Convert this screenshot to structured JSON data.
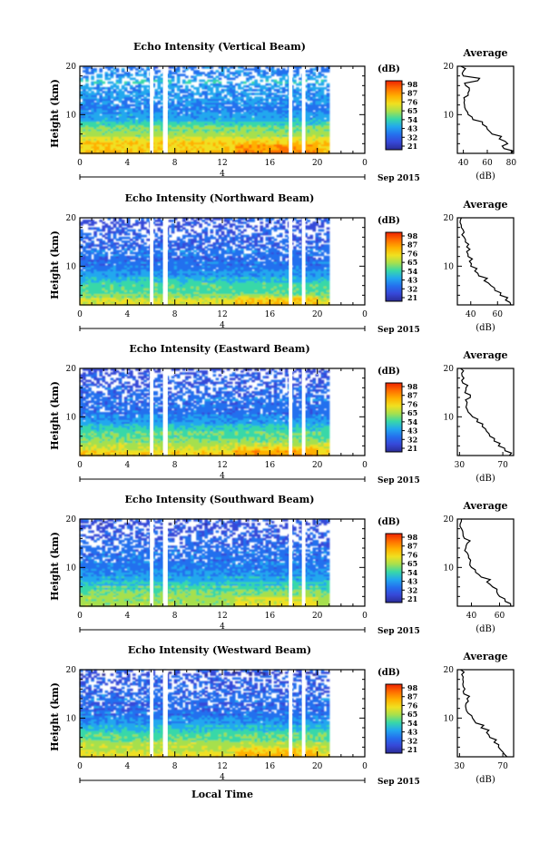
{
  "figure": {
    "local_time_label": "Local Time",
    "date_unit": "Sep 2015",
    "day_label": "4",
    "colorbar": {
      "unit": "(dB)",
      "tick_labels": [
        "98",
        "87",
        "76",
        "65",
        "54",
        "43",
        "32",
        "21"
      ],
      "colors": [
        "#ee2200",
        "#ff6e00",
        "#ffb000",
        "#f0e020",
        "#a6e04e",
        "#38d8a8",
        "#22a8ee",
        "#2470ee",
        "#3648d8",
        "#2a2c96"
      ]
    }
  },
  "chart_data": [
    {
      "type": "heatmap",
      "title": "Echo Intensity (Vertical Beam)",
      "ylabel": "Height (km)",
      "xlim": [
        0,
        24
      ],
      "ylim": [
        2,
        20
      ],
      "x_ticks": [
        "0",
        "4",
        "8",
        "12",
        "16",
        "20",
        "0"
      ],
      "y_ticks": [
        "20",
        "10"
      ],
      "data_end_hour": 21,
      "gaps_hours": [
        [
          5.9,
          6.2
        ],
        [
          7.0,
          7.4
        ],
        [
          17.6,
          17.9
        ],
        [
          18.7,
          19.0
        ]
      ],
      "color_scale": {
        "unit": "dB",
        "range": [
          21,
          98
        ],
        "ticks": [
          98,
          87,
          76,
          65,
          54,
          43,
          32,
          21
        ]
      },
      "profile": {
        "title": "Average",
        "xlabel": "(dB)",
        "x_ticks": [
          "40",
          "60",
          "80"
        ],
        "xlim": [
          35,
          82
        ],
        "heights_km": [
          2,
          3,
          4,
          5,
          6,
          7,
          8,
          9,
          10,
          11,
          12,
          13,
          14,
          15,
          16,
          17,
          18,
          19,
          20
        ],
        "values_db": [
          80,
          74,
          77,
          70,
          64,
          60,
          56,
          48,
          44,
          42,
          41,
          41,
          44,
          45,
          42,
          52,
          40,
          40,
          38
        ]
      }
    },
    {
      "type": "heatmap",
      "title": "Echo Intensity (Northward Beam)",
      "ylabel": "Height (km)",
      "xlim": [
        0,
        24
      ],
      "ylim": [
        2,
        20
      ],
      "x_ticks": [
        "0",
        "4",
        "8",
        "12",
        "16",
        "20",
        "0"
      ],
      "y_ticks": [
        "20",
        "10"
      ],
      "data_end_hour": 21,
      "gaps_hours": [
        [
          5.9,
          6.2
        ],
        [
          7.0,
          7.4
        ],
        [
          17.6,
          17.9
        ],
        [
          18.7,
          19.0
        ]
      ],
      "color_scale": {
        "unit": "dB",
        "range": [
          21,
          98
        ],
        "ticks": [
          98,
          87,
          76,
          65,
          54,
          43,
          32,
          21
        ]
      },
      "profile": {
        "title": "Average",
        "xlabel": "(dB)",
        "x_ticks": [
          "40",
          "60"
        ],
        "xlim": [
          30,
          72
        ],
        "heights_km": [
          2,
          3,
          4,
          5,
          6,
          7,
          8,
          9,
          10,
          11,
          12,
          13,
          14,
          15,
          16,
          17,
          18,
          19,
          20
        ],
        "values_db": [
          70,
          66,
          62,
          58,
          55,
          50,
          46,
          43,
          40,
          39,
          38,
          37,
          37,
          36,
          35,
          35,
          33,
          32,
          33
        ]
      }
    },
    {
      "type": "heatmap",
      "title": "Echo Intensity (Eastward Beam)",
      "ylabel": "Height (km)",
      "xlim": [
        0,
        24
      ],
      "ylim": [
        2,
        20
      ],
      "x_ticks": [
        "0",
        "4",
        "8",
        "12",
        "16",
        "20",
        "0"
      ],
      "y_ticks": [
        "20",
        "10"
      ],
      "data_end_hour": 21,
      "gaps_hours": [
        [
          5.9,
          6.2
        ],
        [
          7.0,
          7.4
        ],
        [
          17.6,
          17.9
        ],
        [
          18.7,
          19.0
        ]
      ],
      "color_scale": {
        "unit": "dB",
        "range": [
          21,
          98
        ],
        "ticks": [
          98,
          87,
          76,
          65,
          54,
          43,
          32,
          21
        ]
      },
      "profile": {
        "title": "Average",
        "xlabel": "(dB)",
        "x_ticks": [
          "30",
          "70"
        ],
        "xlim": [
          28,
          80
        ],
        "heights_km": [
          2,
          3,
          4,
          5,
          6,
          7,
          8,
          9,
          10,
          11,
          12,
          13,
          14,
          15,
          16,
          17,
          18,
          19,
          20
        ],
        "values_db": [
          76,
          72,
          66,
          62,
          58,
          55,
          51,
          46,
          42,
          38,
          36,
          37,
          40,
          35,
          36,
          33,
          34,
          32,
          31
        ]
      }
    },
    {
      "type": "heatmap",
      "title": "Echo Intensity (Southward Beam)",
      "ylabel": "Height (km)",
      "xlim": [
        0,
        24
      ],
      "ylim": [
        2,
        20
      ],
      "x_ticks": [
        "0",
        "4",
        "8",
        "12",
        "16",
        "20",
        "0"
      ],
      "y_ticks": [
        "20",
        "10"
      ],
      "data_end_hour": 21,
      "gaps_hours": [
        [
          5.9,
          6.2
        ],
        [
          7.0,
          7.4
        ],
        [
          17.6,
          17.9
        ],
        [
          18.7,
          19.0
        ]
      ],
      "color_scale": {
        "unit": "dB",
        "range": [
          21,
          98
        ],
        "ticks": [
          98,
          87,
          76,
          65,
          54,
          43,
          32,
          21
        ]
      },
      "profile": {
        "title": "Average",
        "xlabel": "(dB)",
        "x_ticks": [
          "40",
          "60"
        ],
        "xlim": [
          30,
          70
        ],
        "heights_km": [
          2,
          3,
          4,
          5,
          6,
          7,
          8,
          9,
          10,
          11,
          12,
          13,
          14,
          15,
          16,
          17,
          18,
          19,
          20
        ],
        "values_db": [
          68,
          64,
          60,
          58,
          55,
          51,
          47,
          43,
          40,
          39,
          38,
          37,
          36,
          37,
          35,
          34,
          33,
          32,
          33
        ]
      }
    },
    {
      "type": "heatmap",
      "title": "Echo Intensity (Westward Beam)",
      "ylabel": "Height (km)",
      "xlim": [
        0,
        24
      ],
      "ylim": [
        2,
        20
      ],
      "x_ticks": [
        "0",
        "4",
        "8",
        "12",
        "16",
        "20",
        "0"
      ],
      "y_ticks": [
        "20",
        "10"
      ],
      "data_end_hour": 21,
      "gaps_hours": [
        [
          5.9,
          6.2
        ],
        [
          7.0,
          7.4
        ],
        [
          17.6,
          17.9
        ],
        [
          18.7,
          19.0
        ]
      ],
      "color_scale": {
        "unit": "dB",
        "range": [
          21,
          98
        ],
        "ticks": [
          98,
          87,
          76,
          65,
          54,
          43,
          32,
          21
        ]
      },
      "profile": {
        "title": "Average",
        "xlabel": "(dB)",
        "x_ticks": [
          "30",
          "70"
        ],
        "xlim": [
          28,
          80
        ],
        "heights_km": [
          2,
          3,
          4,
          5,
          6,
          7,
          8,
          9,
          10,
          11,
          12,
          13,
          14,
          15,
          16,
          17,
          18,
          19,
          20
        ],
        "values_db": [
          74,
          70,
          66,
          62,
          58,
          55,
          50,
          45,
          42,
          38,
          36,
          36,
          37,
          34,
          35,
          33,
          33,
          32,
          31
        ]
      }
    }
  ]
}
